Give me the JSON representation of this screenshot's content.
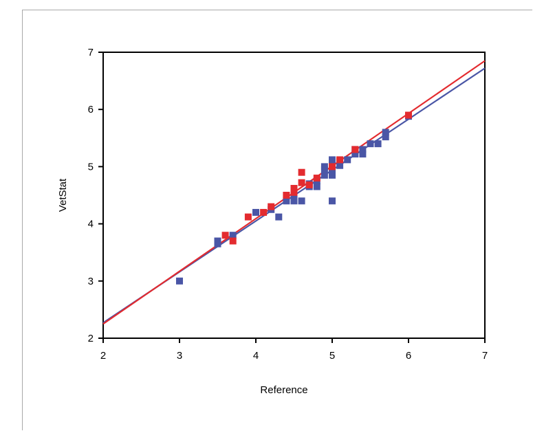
{
  "chart_data": {
    "type": "scatter",
    "xlabel": "Reference",
    "ylabel": "VetStat",
    "xlim": [
      2,
      7
    ],
    "ylim": [
      2,
      7
    ],
    "xticks": [
      "2",
      "3",
      "4",
      "5",
      "6",
      "7"
    ],
    "yticks": [
      "2",
      "3",
      "4",
      "5",
      "6",
      "7"
    ],
    "grid": false,
    "series": [
      {
        "color": "#4a56a6",
        "points": [
          [
            3.0,
            3.0
          ],
          [
            3.5,
            3.65
          ],
          [
            3.5,
            3.7
          ],
          [
            3.7,
            3.8
          ],
          [
            4.0,
            4.2
          ],
          [
            4.2,
            4.25
          ],
          [
            4.3,
            4.12
          ],
          [
            4.4,
            4.4
          ],
          [
            4.5,
            4.4
          ],
          [
            4.5,
            4.45
          ],
          [
            4.6,
            4.4
          ],
          [
            4.7,
            4.65
          ],
          [
            4.7,
            4.7
          ],
          [
            4.8,
            4.65
          ],
          [
            4.8,
            4.75
          ],
          [
            4.9,
            4.85
          ],
          [
            4.9,
            4.95
          ],
          [
            4.9,
            5.0
          ],
          [
            5.0,
            4.4
          ],
          [
            5.0,
            4.85
          ],
          [
            5.0,
            4.92
          ],
          [
            5.0,
            5.0
          ],
          [
            5.0,
            5.05
          ],
          [
            5.0,
            5.12
          ],
          [
            5.1,
            5.02
          ],
          [
            5.1,
            5.1
          ],
          [
            5.2,
            5.12
          ],
          [
            5.3,
            5.22
          ],
          [
            5.3,
            5.3
          ],
          [
            5.4,
            5.22
          ],
          [
            5.4,
            5.3
          ],
          [
            5.5,
            5.4
          ],
          [
            5.6,
            5.4
          ],
          [
            5.7,
            5.52
          ],
          [
            5.7,
            5.6
          ],
          [
            6.0,
            5.88
          ]
        ],
        "fit": {
          "x": [
            2,
            7
          ],
          "y": [
            2.27,
            6.72
          ]
        }
      },
      {
        "color": "#e32b2f",
        "points": [
          [
            3.6,
            3.8
          ],
          [
            3.7,
            3.7
          ],
          [
            3.9,
            4.12
          ],
          [
            4.1,
            4.2
          ],
          [
            4.2,
            4.3
          ],
          [
            4.4,
            4.5
          ],
          [
            4.5,
            4.55
          ],
          [
            4.5,
            4.62
          ],
          [
            4.6,
            4.72
          ],
          [
            4.6,
            4.9
          ],
          [
            4.7,
            4.68
          ],
          [
            4.8,
            4.8
          ],
          [
            5.0,
            5.0
          ],
          [
            5.1,
            5.12
          ],
          [
            5.3,
            5.3
          ],
          [
            6.0,
            5.9
          ]
        ],
        "fit": {
          "x": [
            2,
            7
          ],
          "y": [
            2.25,
            6.85
          ]
        }
      }
    ]
  }
}
